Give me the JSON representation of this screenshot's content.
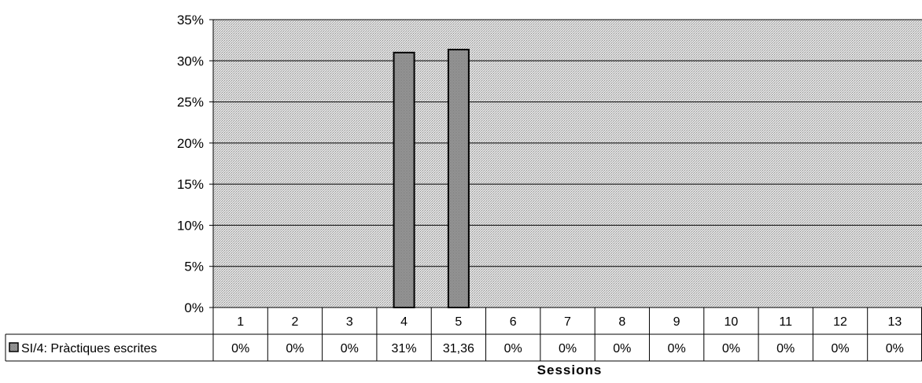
{
  "chart_data": {
    "type": "bar",
    "categories": [
      "1",
      "2",
      "3",
      "4",
      "5",
      "6",
      "7",
      "8",
      "9",
      "10",
      "11",
      "12",
      "13"
    ],
    "series": [
      {
        "name": "SI/4: Pràctiques escrites",
        "values": [
          0,
          0,
          0,
          31,
          31.36,
          0,
          0,
          0,
          0,
          0,
          0,
          0,
          0
        ],
        "labels": [
          "0%",
          "0%",
          "0%",
          "31%",
          "31,36",
          "0%",
          "0%",
          "0%",
          "0%",
          "0%",
          "0%",
          "0%",
          "0%"
        ],
        "color": "#9a9a9a"
      }
    ],
    "xlabel": "Sessions",
    "ylabel": "",
    "ylim": [
      0,
      35
    ],
    "yticks": [
      "0%",
      "5%",
      "10%",
      "15%",
      "20%",
      "25%",
      "30%",
      "35%"
    ],
    "grid": true,
    "legend": "data-table-left",
    "plot_background": "#d4d4d4"
  }
}
